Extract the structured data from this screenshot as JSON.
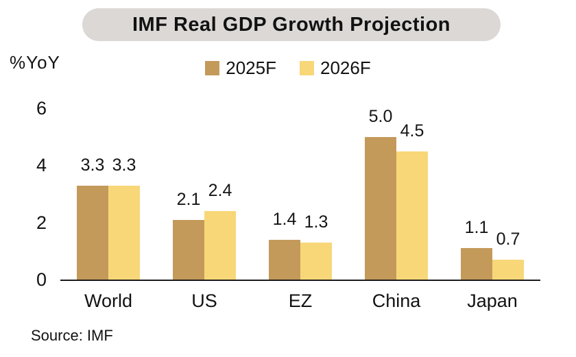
{
  "title": "IMF Real GDP Growth Projection",
  "source": "Source: IMF",
  "colors": {
    "title_pill_bg": "#dcd8d6",
    "axis": "#1a1a1a",
    "series_2025": "#c49a5b",
    "series_2026": "#f8d778"
  },
  "chart_data": {
    "type": "bar",
    "title": "IMF Real GDP Growth Projection",
    "ylabel": "%YoY",
    "xlabel": "",
    "categories": [
      "World",
      "US",
      "EZ",
      "China",
      "Japan"
    ],
    "series": [
      {
        "name": "2025F",
        "color": "#c49a5b",
        "values": [
          3.3,
          2.1,
          1.4,
          5.0,
          1.1
        ]
      },
      {
        "name": "2026F",
        "color": "#f8d778",
        "values": [
          3.3,
          2.4,
          1.3,
          4.5,
          0.7
        ]
      }
    ],
    "ylim": [
      0,
      6
    ],
    "yticks": [
      0,
      2,
      4,
      6
    ],
    "grid": false,
    "legend_position": "top",
    "value_labels": true,
    "label_decimals": 1
  }
}
